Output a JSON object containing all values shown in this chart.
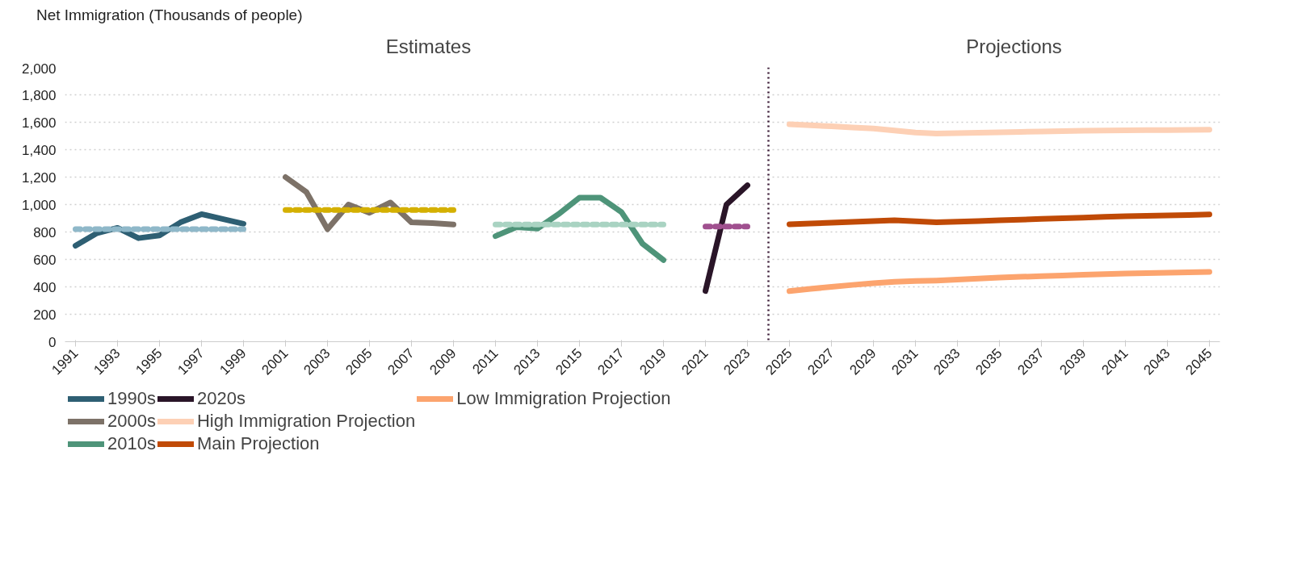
{
  "chart_data": {
    "type": "line",
    "ylabel": "Net Immigration (Thousands of people)",
    "annotations": [
      "Estimates",
      "Projections"
    ],
    "series": [
      {
        "name": "1990s",
        "color": "#2e5f73",
        "x": [
          1991,
          1992,
          1993,
          1994,
          1995,
          1996,
          1997,
          1998,
          1999
        ],
        "values": [
          700,
          790,
          830,
          755,
          775,
          870,
          930,
          895,
          860
        ]
      },
      {
        "color": "#8fb8c9",
        "line_style": "dashed",
        "x": [
          1991,
          1999
        ],
        "values": [
          820,
          820
        ]
      },
      {
        "name": "2000s",
        "color": "#7d7268",
        "x": [
          2001,
          2002,
          2003,
          2004,
          2005,
          2006,
          2007,
          2008,
          2009
        ],
        "values": [
          1200,
          1090,
          820,
          1000,
          940,
          1015,
          870,
          865,
          855
        ]
      },
      {
        "color": "#d4b000",
        "line_style": "dashed",
        "x": [
          2001,
          2009
        ],
        "values": [
          960,
          960
        ]
      },
      {
        "name": "2010s",
        "color": "#4e9479",
        "x": [
          2011,
          2012,
          2013,
          2014,
          2015,
          2016,
          2017,
          2018,
          2019
        ],
        "values": [
          770,
          835,
          825,
          930,
          1050,
          1050,
          945,
          715,
          595
        ]
      },
      {
        "color": "#a9d3c2",
        "line_style": "dashed",
        "x": [
          2011,
          2019
        ],
        "values": [
          855,
          855
        ]
      },
      {
        "name": "2020s",
        "color": "#2a1528",
        "x": [
          2021,
          2022,
          2023
        ],
        "values": [
          370,
          1000,
          1140
        ]
      },
      {
        "color": "#a0508f",
        "line_style": "dashed",
        "x": [
          2021,
          2023
        ],
        "values": [
          840,
          840
        ]
      },
      {
        "name": "High Immigration Projection",
        "color": "#fdd0b5",
        "x": [
          2025,
          2026,
          2027,
          2028,
          2029,
          2030,
          2031,
          2032,
          2033,
          2034,
          2035,
          2036,
          2037,
          2038,
          2039,
          2040,
          2041,
          2042,
          2043,
          2044,
          2045
        ],
        "values": [
          1585,
          1578,
          1570,
          1562,
          1555,
          1540,
          1525,
          1518,
          1520,
          1523,
          1527,
          1530,
          1533,
          1536,
          1538,
          1540,
          1541,
          1542,
          1543,
          1544,
          1545
        ]
      },
      {
        "name": "Main Projection",
        "color": "#c04a06",
        "x": [
          2025,
          2026,
          2027,
          2028,
          2029,
          2030,
          2031,
          2032,
          2033,
          2034,
          2035,
          2036,
          2037,
          2038,
          2039,
          2040,
          2041,
          2042,
          2043,
          2044,
          2045
        ],
        "values": [
          856,
          862,
          868,
          874,
          880,
          885,
          878,
          870,
          875,
          880,
          885,
          890,
          895,
          900,
          905,
          910,
          914,
          917,
          920,
          924,
          928
        ]
      },
      {
        "name": "Low Immigration Projection",
        "color": "#fca46e",
        "x": [
          2025,
          2026,
          2027,
          2028,
          2029,
          2030,
          2031,
          2032,
          2033,
          2034,
          2035,
          2036,
          2037,
          2038,
          2039,
          2040,
          2041,
          2042,
          2043,
          2044,
          2045
        ],
        "values": [
          369,
          385,
          400,
          414,
          426,
          437,
          442,
          446,
          453,
          460,
          468,
          473,
          478,
          483,
          488,
          493,
          497,
          500,
          503,
          506,
          509
        ]
      }
    ],
    "ref_lines": [
      {
        "axis": "x",
        "value": 2024,
        "color": "#3a1a35",
        "line_style": "dotted"
      }
    ],
    "xlim": [
      1990.5,
      2045.5
    ],
    "xticks": [
      1991,
      1993,
      1995,
      1997,
      1999,
      2001,
      2003,
      2005,
      2007,
      2009,
      2011,
      2013,
      2015,
      2017,
      2019,
      2021,
      2023,
      2025,
      2027,
      2029,
      2031,
      2033,
      2035,
      2037,
      2039,
      2041,
      2043,
      2045
    ],
    "ylim": [
      0,
      2000
    ],
    "yticks": [
      0,
      200,
      400,
      600,
      800,
      {
        "value": 1000,
        "label": "1,000"
      },
      {
        "value": 1200,
        "label": "1,200"
      },
      {
        "value": 1400,
        "label": "1,400"
      },
      {
        "value": 1600,
        "label": "1,600"
      },
      {
        "value": 1800,
        "label": "1,800"
      },
      {
        "value": 2000,
        "label": "2,000"
      }
    ],
    "grid": "y",
    "legend": "bottom",
    "line_style": "solid",
    "marker": "none"
  }
}
